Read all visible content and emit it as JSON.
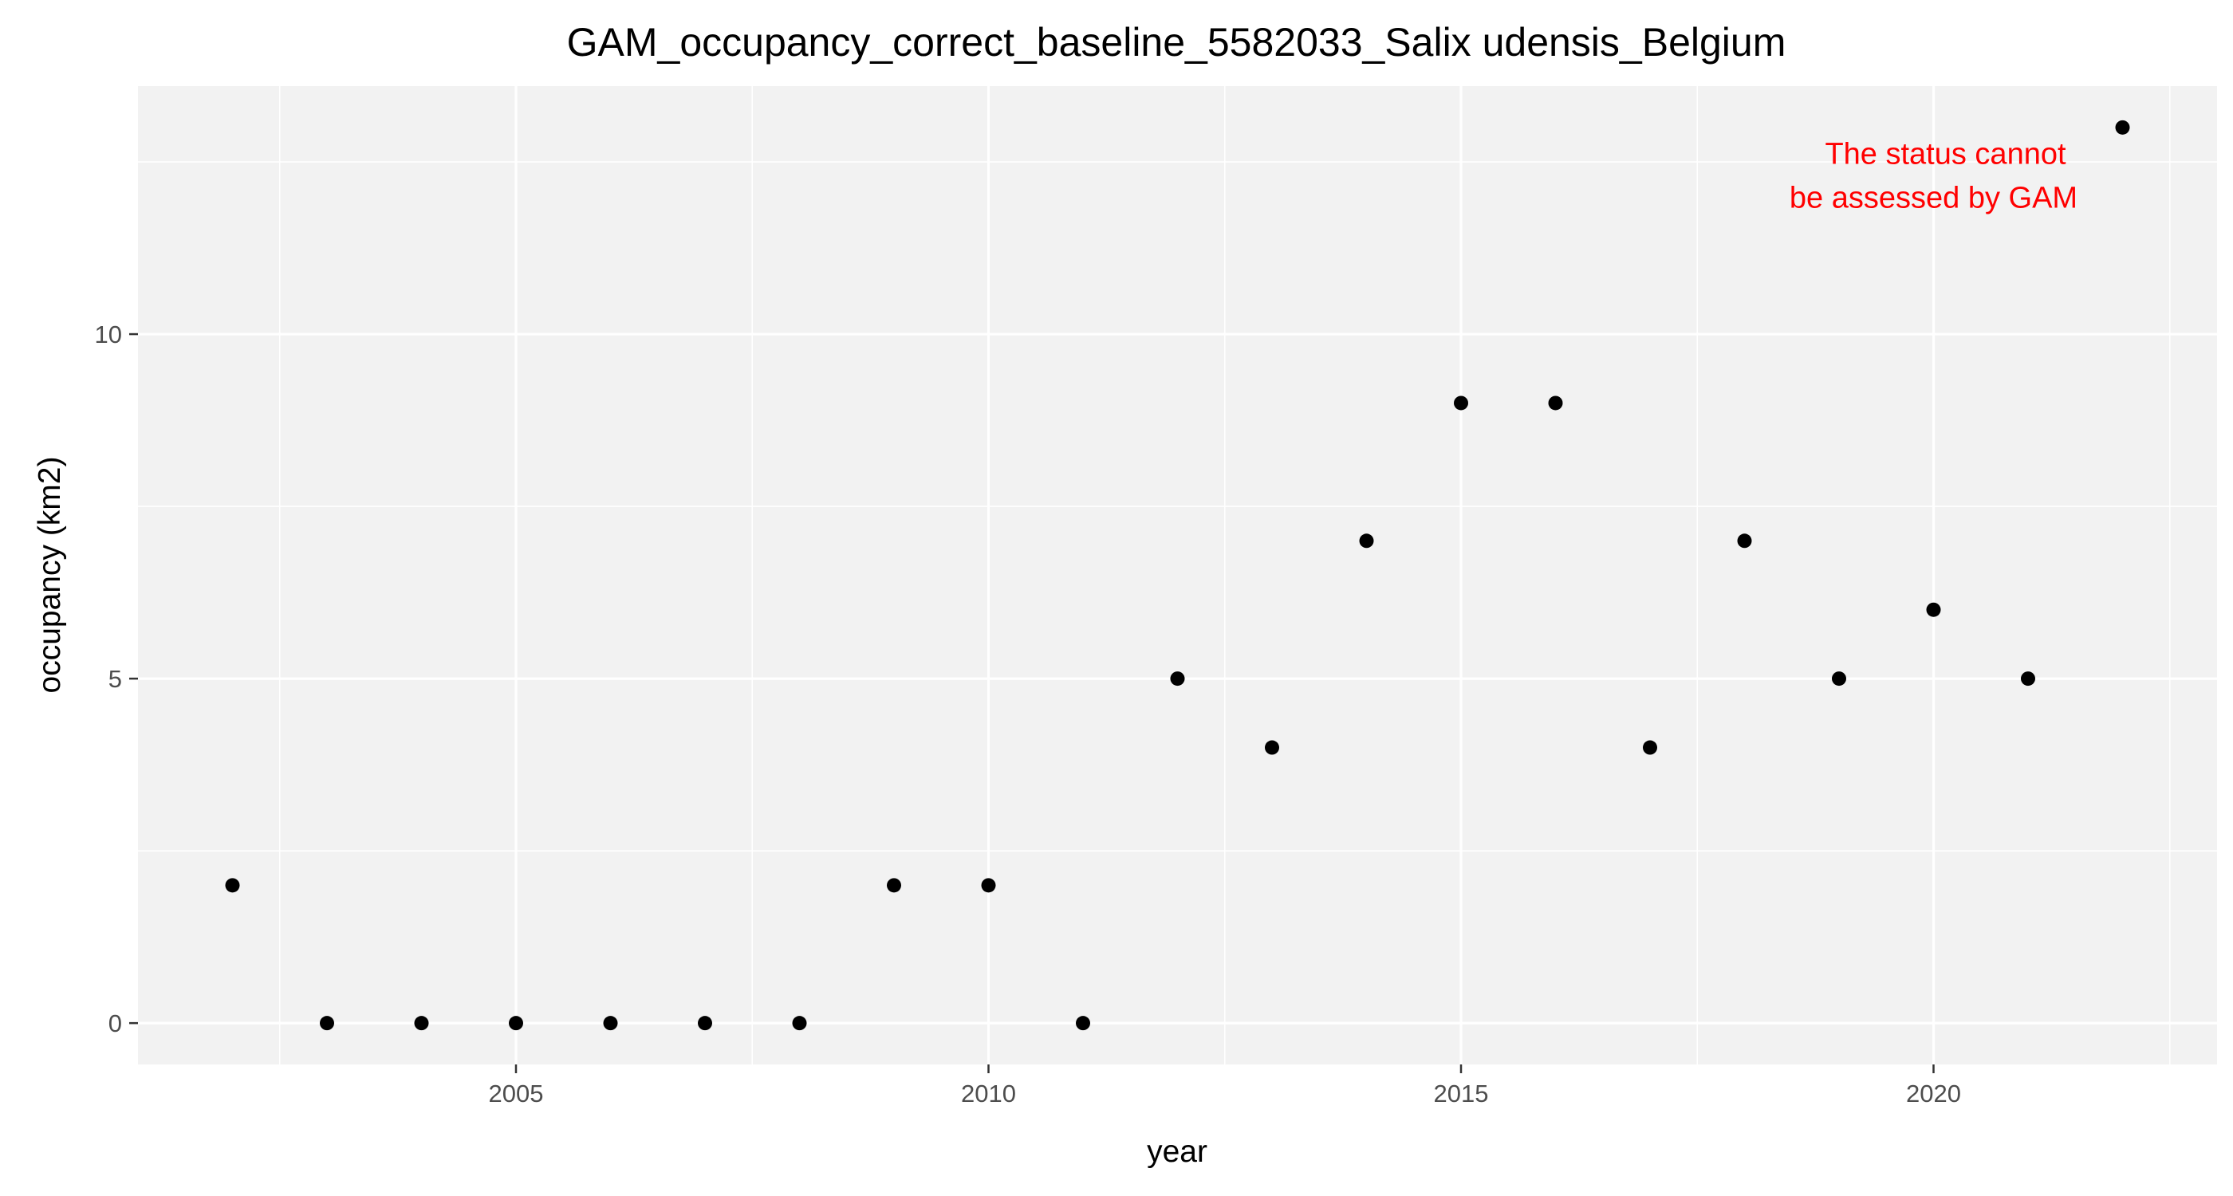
{
  "chart_data": {
    "type": "scatter",
    "title": "GAM_occupancy_correct_baseline_5582033_Salix udensis_Belgium",
    "xlabel": "year",
    "ylabel": "occupancy (km2)",
    "xlim": [
      2001.0,
      2023.0
    ],
    "ylim": [
      -0.6,
      13.6
    ],
    "x_ticks": [
      2005,
      2010,
      2015,
      2020
    ],
    "y_ticks": [
      0,
      5,
      10
    ],
    "grid": true,
    "legend": "none",
    "point_color": "#000000",
    "panel_color": "#f2f2f2",
    "grid_color": "#ffffff",
    "annotation": {
      "lines": [
        "The status cannot",
        "be assessed by GAM"
      ],
      "color": "#ff0000",
      "anchor_x": 2020.0,
      "anchor_y": 12.3
    },
    "points": [
      {
        "x": 2002,
        "y": 2
      },
      {
        "x": 2003,
        "y": 0
      },
      {
        "x": 2004,
        "y": 0
      },
      {
        "x": 2005,
        "y": 0
      },
      {
        "x": 2006,
        "y": 0
      },
      {
        "x": 2007,
        "y": 0
      },
      {
        "x": 2008,
        "y": 0
      },
      {
        "x": 2009,
        "y": 2
      },
      {
        "x": 2010,
        "y": 2
      },
      {
        "x": 2011,
        "y": 0
      },
      {
        "x": 2012,
        "y": 5
      },
      {
        "x": 2013,
        "y": 4
      },
      {
        "x": 2014,
        "y": 7
      },
      {
        "x": 2015,
        "y": 9
      },
      {
        "x": 2016,
        "y": 9
      },
      {
        "x": 2017,
        "y": 4
      },
      {
        "x": 2018,
        "y": 7
      },
      {
        "x": 2019,
        "y": 5
      },
      {
        "x": 2020,
        "y": 6
      },
      {
        "x": 2021,
        "y": 5
      },
      {
        "x": 2022,
        "y": 13
      }
    ]
  }
}
